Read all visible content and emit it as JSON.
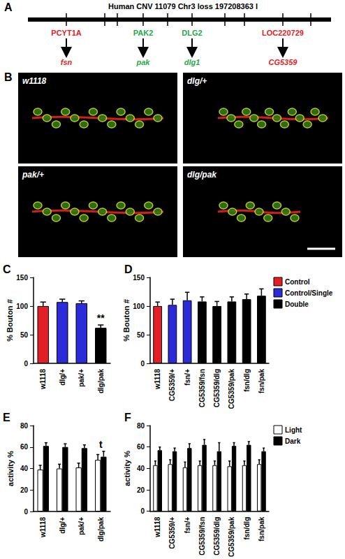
{
  "panel_a": {
    "letter": "A",
    "title": "Human CNV 11079 Chr3 loss 197208363 l",
    "genes": [
      {
        "human": "PCYT1A",
        "drosophila": "fsn",
        "color": "#e31e24"
      },
      {
        "human": "PAK2",
        "drosophila": "pak",
        "color": "#2aa84a"
      },
      {
        "human": "DLG2",
        "drosophila": "dlg1",
        "color": "#2aa84a"
      },
      {
        "human": "LOC220729",
        "drosophila": "CG5359",
        "color": "#e31e24"
      }
    ]
  },
  "panel_b": {
    "letter": "B",
    "images": [
      "w1118",
      "dlg/+",
      "pak/+",
      "dlg/pak"
    ]
  },
  "chart_data": [
    {
      "title": "C",
      "type": "bar",
      "categories": [
        "w1118",
        "dlg/+",
        "pak/+",
        "dlg/pak"
      ],
      "values": [
        100,
        107,
        105,
        62
      ],
      "errors": [
        7,
        5,
        4,
        5
      ],
      "colors": [
        "#e31e24",
        "#2b2bd9",
        "#2b2bd9",
        "#000000"
      ],
      "y_label": "% Bouton #",
      "ylim": [
        0,
        150
      ],
      "yticks": [
        0,
        50,
        100,
        150
      ],
      "grid": false,
      "annotations": [
        {
          "category": "dlg/pak",
          "text": "**"
        }
      ]
    },
    {
      "title": "D",
      "type": "bar",
      "categories": [
        "w1118",
        "CG5359/+",
        "fsn/+",
        "CG5359/fsn",
        "CG5359/dlg",
        "CG5359/pak",
        "fsn/dlg",
        "fsn/pak"
      ],
      "values": [
        100,
        102,
        110,
        108,
        100,
        108,
        112,
        118
      ],
      "errors": [
        7,
        10,
        14,
        8,
        8,
        8,
        9,
        12
      ],
      "colors": [
        "#e31e24",
        "#2b2bd9",
        "#2b2bd9",
        "#000000",
        "#000000",
        "#000000",
        "#000000",
        "#000000"
      ],
      "y_label": "% Bouton #",
      "ylim": [
        0,
        150
      ],
      "yticks": [
        0,
        50,
        100,
        150
      ],
      "grid": false,
      "legend": "upper right",
      "legend_items": [
        {
          "name": "Control",
          "color": "#e31e24"
        },
        {
          "name": "Control/Single",
          "color": "#2b2bd9"
        },
        {
          "name": "Double",
          "color": "#000000"
        }
      ]
    },
    {
      "title": "E",
      "type": "grouped_bar",
      "categories": [
        "w1118",
        "dlg/+",
        "pak/+",
        "dlg/pak"
      ],
      "series": [
        {
          "name": "Light",
          "color": "#ffffff",
          "values": [
            39,
            40,
            41,
            48
          ],
          "errors": [
            4,
            4,
            4,
            5
          ]
        },
        {
          "name": "Dark",
          "color": "#000000",
          "values": [
            61,
            60,
            59,
            51
          ],
          "errors": [
            3,
            3,
            3,
            5
          ]
        }
      ],
      "y_label": "activity %",
      "ylim": [
        0,
        80
      ],
      "yticks": [
        0,
        20,
        40,
        60,
        80
      ],
      "grid": false,
      "annotations": [
        {
          "category": "dlg/pak",
          "text": "t"
        }
      ]
    },
    {
      "title": "F",
      "type": "grouped_bar",
      "categories": [
        "w1118",
        "CG5359/+",
        "fsn/+",
        "CG5359/fsn",
        "CG5359/dlg",
        "CG5359/pak",
        "fsn/dlg",
        "fsn/pak"
      ],
      "series": [
        {
          "name": "Light",
          "color": "#ffffff",
          "values": [
            43,
            44,
            41,
            43,
            43,
            42,
            43,
            44
          ],
          "errors": [
            4,
            4,
            5,
            4,
            4,
            5,
            4,
            4
          ]
        },
        {
          "name": "Dark",
          "color": "#000000",
          "values": [
            57,
            56,
            59,
            62,
            56,
            61,
            62,
            56
          ],
          "errors": [
            3,
            3,
            4,
            5,
            8,
            3,
            3,
            3
          ]
        }
      ],
      "y_label": "activity %",
      "ylim": [
        0,
        80
      ],
      "yticks": [
        0,
        20,
        40,
        60,
        80
      ],
      "grid": false,
      "legend": "upper right"
    }
  ]
}
